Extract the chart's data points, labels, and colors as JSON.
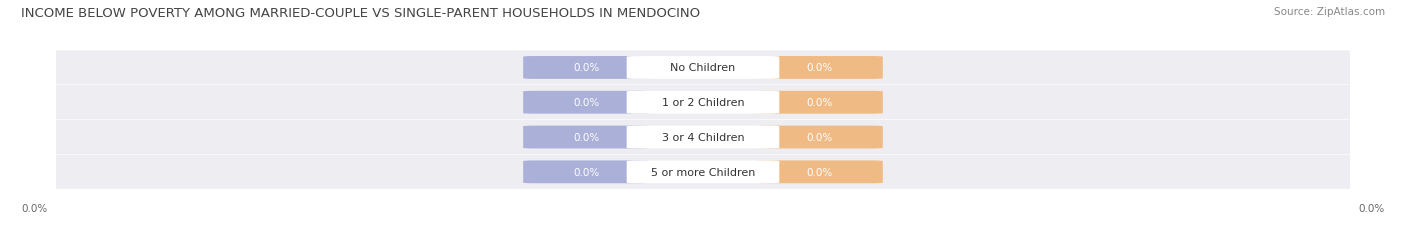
{
  "title": "INCOME BELOW POVERTY AMONG MARRIED-COUPLE VS SINGLE-PARENT HOUSEHOLDS IN MENDOCINO",
  "source_text": "Source: ZipAtlas.com",
  "categories": [
    "No Children",
    "1 or 2 Children",
    "3 or 4 Children",
    "5 or more Children"
  ],
  "married_values": [
    0.0,
    0.0,
    0.0,
    0.0
  ],
  "single_values": [
    0.0,
    0.0,
    0.0,
    0.0
  ],
  "married_color": "#aab0d8",
  "single_color": "#f0ba84",
  "row_bg_color": "#ededf2",
  "title_color": "#444444",
  "source_color": "#888888",
  "label_color": "#ffffff",
  "category_color": "#333333",
  "axis_label_color": "#666666",
  "background_color": "#ffffff",
  "title_fontsize": 9.5,
  "source_fontsize": 7.5,
  "value_fontsize": 7.5,
  "category_fontsize": 8,
  "legend_fontsize": 8,
  "axis_label": "0.0%"
}
